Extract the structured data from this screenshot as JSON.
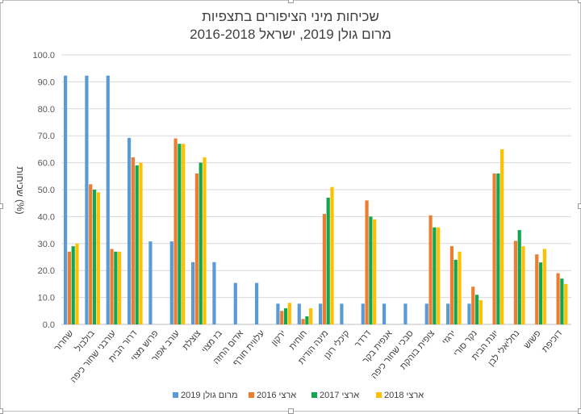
{
  "chart_data": {
    "type": "bar",
    "title": "שכיחות מיני הציפורים בתצפיות",
    "subtitle": "מרום גולן 2019, ישראל 2016-2018",
    "ylabel": "שכיחות (%)",
    "xlabel": "",
    "ylim": [
      0,
      100
    ],
    "yticks": [
      "0.0",
      "10.0",
      "20.0",
      "30.0",
      "40.0",
      "50.0",
      "60.0",
      "70.0",
      "80.0",
      "90.0",
      "100.0"
    ],
    "grid": true,
    "legend_position": "bottom",
    "categories": [
      "שחרור",
      "בולבול",
      "עורבני שחור כיפה",
      "דרור הבית",
      "פרוש מצוי",
      "עורב אפור",
      "צוצלת",
      "בז מצוי",
      "אדום החזה",
      "עלווית חורף",
      "ירקון",
      "חוחית",
      "מינה הודית",
      "קיכלי רונן",
      "דרדר",
      "אנפית בקר",
      "סבכי שחור כיפה",
      "צופית בוהקת",
      "ירגזי",
      "נקר סורי",
      "יונת הבית",
      "נחליאלי לבן",
      "פשוש",
      "דוכיפת"
    ],
    "series": [
      {
        "name": "מרום גולן 2019",
        "color": "#5b9bd5",
        "values": [
          92.3,
          92.3,
          92.3,
          69.2,
          30.8,
          30.8,
          23.1,
          23.1,
          15.4,
          15.4,
          7.7,
          7.7,
          7.7,
          7.7,
          7.7,
          7.7,
          7.7,
          7.7,
          7.7,
          7.7,
          null,
          null,
          null,
          null
        ]
      },
      {
        "name": "ארצי 2016",
        "color": "#ed7d31",
        "values": [
          27,
          52,
          28,
          62,
          null,
          69,
          56,
          null,
          null,
          null,
          5,
          2,
          41,
          null,
          46,
          null,
          null,
          40.5,
          29,
          14,
          56,
          31,
          26,
          19
        ]
      },
      {
        "name": "ארצי 2017",
        "color": "#12a650",
        "values": [
          29,
          50,
          27,
          59,
          null,
          67,
          60,
          null,
          null,
          null,
          6,
          3,
          47,
          null,
          40,
          null,
          null,
          36,
          24,
          11,
          56,
          35,
          23,
          17
        ]
      },
      {
        "name": "ארצי 2018",
        "color": "#ffc000",
        "values": [
          30,
          49,
          27,
          60,
          null,
          67,
          62,
          null,
          null,
          null,
          8,
          6,
          51,
          null,
          39,
          null,
          null,
          36,
          27,
          9,
          65,
          29,
          28,
          15
        ]
      }
    ]
  }
}
